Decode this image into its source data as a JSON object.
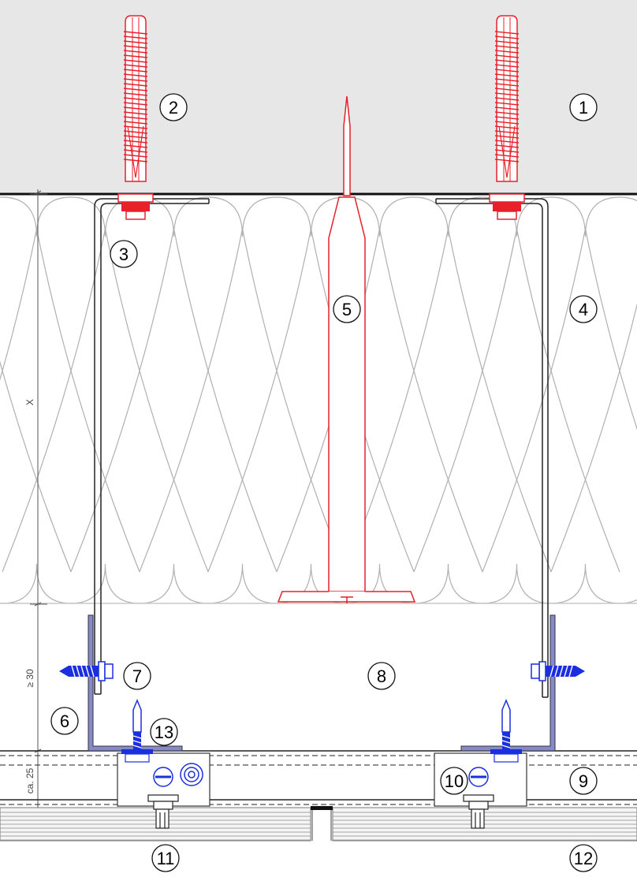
{
  "callouts": [
    "1",
    "2",
    "3",
    "4",
    "5",
    "6",
    "7",
    "8",
    "9",
    "10",
    "11",
    "12",
    "13"
  ],
  "dimensions": {
    "insulation": "X",
    "gap": "≥ 30",
    "rail": "ca. 25"
  },
  "colors": {
    "anchor": "#e8202a",
    "screw": "#1a2fe0",
    "bracket": "#8888cc",
    "wall_fill": "#e7e7e7",
    "insulation_line": "#b0b0b0",
    "line": "#111111"
  }
}
